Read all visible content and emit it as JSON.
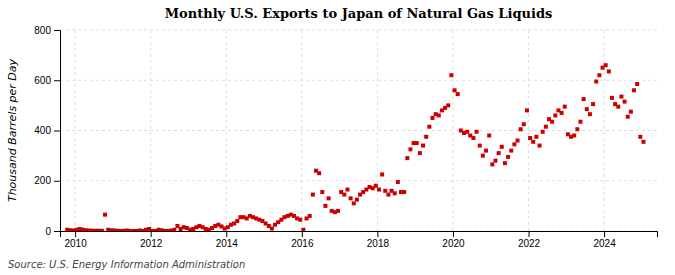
{
  "chart_data": {
    "type": "scatter",
    "title": "Monthly U.S. Exports to Japan of Natural Gas Liquids",
    "ylabel": "Thousand Barrels per Day",
    "annotations": [
      "Source: U.S. Energy Information Administration"
    ],
    "color": "#cc0000",
    "marker": "square",
    "grid": true,
    "xlim": [
      2009.6,
      2025.4
    ],
    "xticks": [
      2010,
      2012,
      2014,
      2016,
      2018,
      2020,
      2022,
      2024
    ],
    "ylim": [
      0,
      800
    ],
    "yticks": [
      0,
      200,
      400,
      600,
      800
    ],
    "x": [
      2009.7916666666667,
      2009.875,
      2009.9583333333333,
      2010.0416666666667,
      2010.125,
      2010.2083333333333,
      2010.2916666666667,
      2010.375,
      2010.4583333333333,
      2010.5416666666667,
      2010.625,
      2010.7083333333333,
      2010.7916666666667,
      2010.875,
      2010.9583333333333,
      2011.0416666666667,
      2011.125,
      2011.2083333333333,
      2011.2916666666667,
      2011.375,
      2011.4583333333333,
      2011.5416666666667,
      2011.625,
      2011.7083333333333,
      2011.7916666666667,
      2011.875,
      2011.9583333333333,
      2012.0416666666667,
      2012.125,
      2012.2083333333333,
      2012.2916666666667,
      2012.375,
      2012.4583333333333,
      2012.5416666666667,
      2012.625,
      2012.7083333333333,
      2012.7916666666667,
      2012.875,
      2012.9583333333333,
      2013.0416666666667,
      2013.125,
      2013.2083333333333,
      2013.2916666666667,
      2013.375,
      2013.4583333333333,
      2013.5416666666667,
      2013.625,
      2013.7083333333333,
      2013.7916666666667,
      2013.875,
      2013.9583333333333,
      2014.0416666666667,
      2014.125,
      2014.2083333333333,
      2014.2916666666667,
      2014.375,
      2014.4583333333333,
      2014.5416666666667,
      2014.625,
      2014.7083333333333,
      2014.7916666666667,
      2014.875,
      2014.9583333333333,
      2015.0416666666667,
      2015.125,
      2015.2083333333333,
      2015.2916666666667,
      2015.375,
      2015.4583333333333,
      2015.5416666666667,
      2015.625,
      2015.7083333333333,
      2015.7916666666667,
      2015.875,
      2015.9583333333333,
      2016.0416666666667,
      2016.125,
      2016.2083333333333,
      2016.2916666666667,
      2016.375,
      2016.4583333333333,
      2016.5416666666667,
      2016.625,
      2016.7083333333333,
      2016.7916666666667,
      2016.875,
      2016.9583333333333,
      2017.0416666666667,
      2017.125,
      2017.2083333333333,
      2017.2916666666667,
      2017.375,
      2017.4583333333333,
      2017.5416666666667,
      2017.625,
      2017.7083333333333,
      2017.7916666666667,
      2017.875,
      2017.9583333333333,
      2018.0416666666667,
      2018.125,
      2018.2083333333333,
      2018.2916666666667,
      2018.375,
      2018.4583333333333,
      2018.5416666666667,
      2018.625,
      2018.7083333333333,
      2018.7916666666667,
      2018.875,
      2018.9583333333333,
      2019.0416666666667,
      2019.125,
      2019.2083333333333,
      2019.2916666666667,
      2019.375,
      2019.4583333333333,
      2019.5416666666667,
      2019.625,
      2019.7083333333333,
      2019.7916666666667,
      2019.875,
      2019.9583333333333,
      2020.0416666666667,
      2020.125,
      2020.2083333333333,
      2020.2916666666667,
      2020.375,
      2020.4583333333333,
      2020.5416666666667,
      2020.625,
      2020.7083333333333,
      2020.7916666666667,
      2020.875,
      2020.9583333333333,
      2021.0416666666667,
      2021.125,
      2021.2083333333333,
      2021.2916666666667,
      2021.375,
      2021.4583333333333,
      2021.5416666666667,
      2021.625,
      2021.7083333333333,
      2021.7916666666667,
      2021.875,
      2021.9583333333333,
      2022.0416666666667,
      2022.125,
      2022.2083333333333,
      2022.2916666666667,
      2022.375,
      2022.4583333333333,
      2022.5416666666667,
      2022.625,
      2022.7083333333333,
      2022.7916666666667,
      2022.875,
      2022.9583333333333,
      2023.0416666666667,
      2023.125,
      2023.2083333333333,
      2023.2916666666667,
      2023.375,
      2023.4583333333333,
      2023.5416666666667,
      2023.625,
      2023.7083333333333,
      2023.7916666666667,
      2023.875,
      2023.9583333333333,
      2024.0416666666667,
      2024.125,
      2024.2083333333333,
      2024.2916666666667,
      2024.375,
      2024.4583333333333,
      2024.5416666666667,
      2024.625,
      2024.7083333333333,
      2024.7916666666667,
      2024.875,
      2024.9583333333333,
      2025.0416666666667
    ],
    "values": [
      5,
      3,
      2,
      5,
      8,
      5,
      3,
      2,
      1,
      1,
      1,
      1,
      65,
      5,
      3,
      2,
      1,
      0,
      1,
      2,
      0,
      0,
      0,
      2,
      0,
      5,
      8,
      0,
      0,
      5,
      3,
      0,
      0,
      2,
      5,
      20,
      8,
      15,
      12,
      5,
      8,
      15,
      20,
      15,
      8,
      5,
      12,
      20,
      25,
      18,
      10,
      15,
      25,
      30,
      40,
      55,
      55,
      50,
      60,
      55,
      50,
      45,
      40,
      30,
      20,
      10,
      25,
      35,
      45,
      55,
      60,
      65,
      60,
      50,
      45,
      5,
      50,
      60,
      145,
      240,
      230,
      155,
      100,
      130,
      80,
      75,
      80,
      155,
      145,
      165,
      130,
      110,
      125,
      145,
      155,
      165,
      175,
      170,
      180,
      165,
      225,
      160,
      145,
      160,
      150,
      195,
      155,
      155,
      290,
      325,
      350,
      350,
      310,
      340,
      375,
      415,
      450,
      465,
      460,
      480,
      490,
      500,
      620,
      560,
      545,
      400,
      390,
      395,
      380,
      370,
      395,
      340,
      300,
      320,
      380,
      265,
      280,
      310,
      335,
      270,
      295,
      320,
      345,
      360,
      405,
      425,
      480,
      370,
      355,
      375,
      340,
      395,
      415,
      445,
      435,
      460,
      480,
      470,
      495,
      385,
      375,
      380,
      405,
      435,
      525,
      485,
      465,
      505,
      595,
      620,
      650,
      660,
      635,
      530,
      505,
      495,
      535,
      515,
      455,
      475,
      560,
      585,
      375,
      355
    ]
  }
}
